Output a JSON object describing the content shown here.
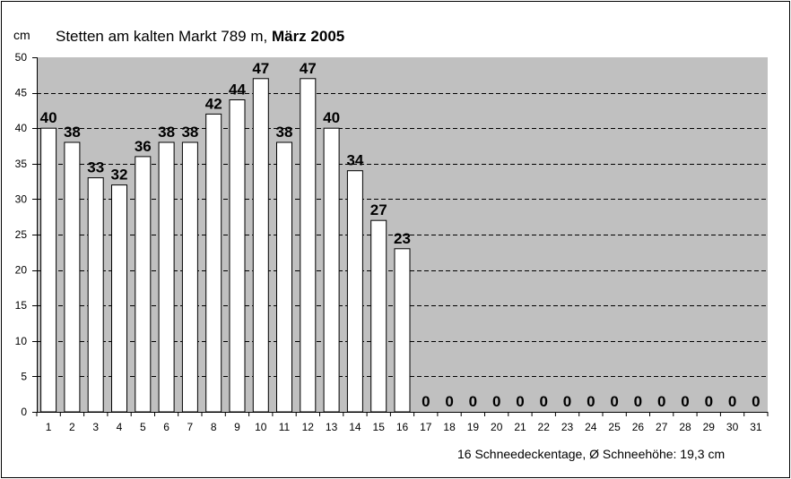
{
  "chart_data": {
    "type": "bar",
    "title_prefix": "Stetten am kalten Markt  789 m, ",
    "title_bold": "März 2005",
    "ylabel": "cm",
    "ylim": [
      0,
      50
    ],
    "yticks": [
      0,
      5,
      10,
      15,
      20,
      25,
      30,
      35,
      40,
      45,
      50
    ],
    "categories": [
      "1",
      "2",
      "3",
      "4",
      "5",
      "6",
      "7",
      "8",
      "9",
      "10",
      "11",
      "12",
      "13",
      "14",
      "15",
      "16",
      "17",
      "18",
      "19",
      "20",
      "21",
      "22",
      "23",
      "24",
      "25",
      "26",
      "27",
      "28",
      "29",
      "30",
      "31"
    ],
    "values": [
      40,
      38,
      33,
      32,
      36,
      38,
      38,
      42,
      44,
      47,
      38,
      47,
      40,
      34,
      27,
      23,
      0,
      0,
      0,
      0,
      0,
      0,
      0,
      0,
      0,
      0,
      0,
      0,
      0,
      0,
      0
    ],
    "footer": "16 Schneedeckentage,  Ø Schneehöhe:  19,3 cm",
    "grid": "dashed horizontal",
    "colors": {
      "plot_background": "#c0c0c0",
      "bar_fill": "#ffffff",
      "bar_stroke": "#000000",
      "grid": "#000000"
    }
  }
}
